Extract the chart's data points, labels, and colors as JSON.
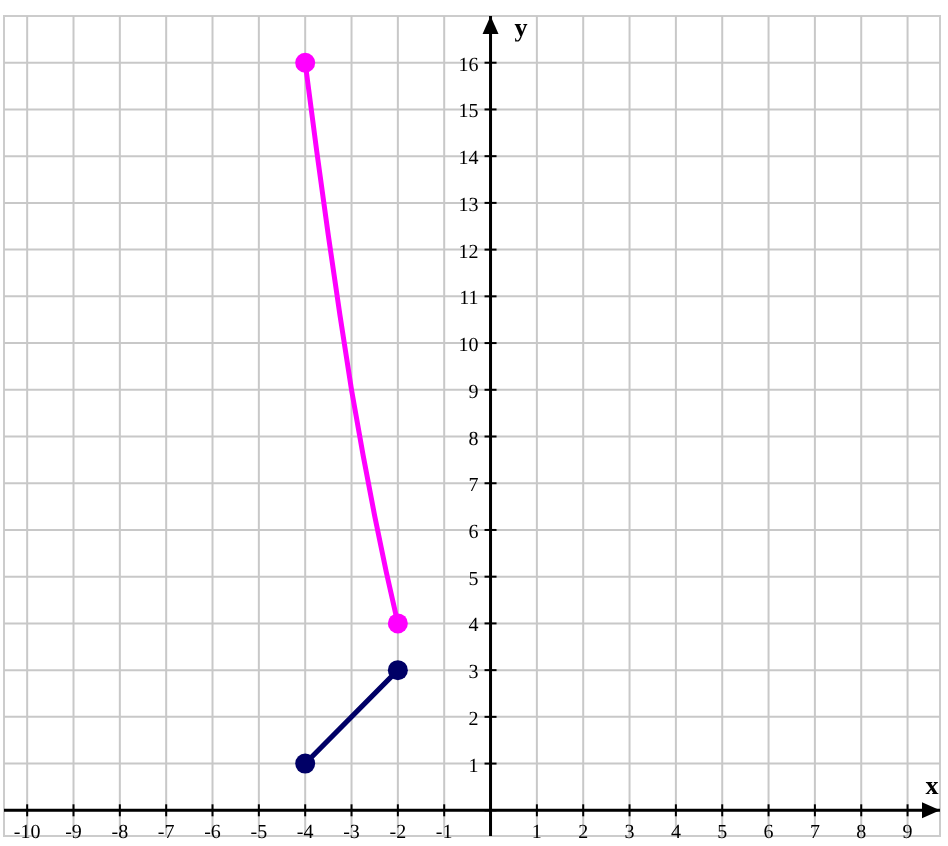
{
  "chart_data": {
    "type": "line",
    "xlabel": "x",
    "ylabel": "y",
    "xlim": [
      -10.5,
      9.7
    ],
    "ylim": [
      -0.55,
      17
    ],
    "xticks": [
      -10,
      -9,
      -8,
      -7,
      -6,
      -5,
      -4,
      -3,
      -2,
      -1,
      {
        "value": 0,
        "label": null
      },
      1,
      2,
      3,
      4,
      5,
      6,
      7,
      8,
      9
    ],
    "yticks": [
      {
        "value": 0,
        "label": null
      },
      1,
      2,
      3,
      4,
      5,
      6,
      7,
      8,
      9,
      10,
      11,
      12,
      13,
      14,
      15,
      16
    ],
    "grid": true,
    "marker": "circle",
    "line_style": "solid",
    "series": [
      {
        "color": "#ff00ff",
        "x": [
          -4,
          -3.75,
          -3.5,
          -3.25,
          -3,
          -2.75,
          -2.5,
          -2.25,
          -2
        ],
        "values": [
          16,
          14.1,
          12.3,
          10.6,
          9,
          7.6,
          6.3,
          5.1,
          4
        ],
        "marker": "none"
      },
      {
        "type": "scatter",
        "color": "#ff00ff",
        "x": [
          -4,
          -2
        ],
        "values": [
          16,
          4
        ]
      },
      {
        "color": "#000066",
        "x": [
          -4,
          -2
        ],
        "values": [
          1,
          3
        ]
      }
    ]
  }
}
